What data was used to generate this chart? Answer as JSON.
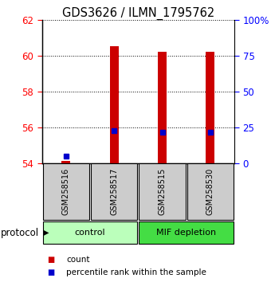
{
  "title": "GDS3626 / ILMN_1795762",
  "samples": [
    "GSM258516",
    "GSM258517",
    "GSM258515",
    "GSM258530"
  ],
  "bar_bottoms": [
    54.0,
    54.0,
    54.0,
    54.0
  ],
  "bar_tops": [
    54.15,
    60.55,
    60.2,
    60.2
  ],
  "percentile_values": [
    54.42,
    55.82,
    55.75,
    55.75
  ],
  "ylim_left": [
    54,
    62
  ],
  "ylim_right": [
    0,
    100
  ],
  "yticks_left": [
    54,
    56,
    58,
    60,
    62
  ],
  "yticks_right": [
    0,
    25,
    50,
    75,
    100
  ],
  "ytick_labels_right": [
    "0",
    "25",
    "50",
    "75",
    "100%"
  ],
  "groups": [
    {
      "label": "control",
      "span": [
        0,
        2
      ],
      "color": "#bbffbb"
    },
    {
      "label": "MIF depletion",
      "span": [
        2,
        4
      ],
      "color": "#44dd44"
    }
  ],
  "bar_color": "#cc0000",
  "percentile_color": "#0000cc",
  "bar_width": 0.18,
  "sample_box_color": "#cccccc",
  "protocol_label": "protocol",
  "legend_items": [
    {
      "color": "#cc0000",
      "label": "count"
    },
    {
      "color": "#0000cc",
      "label": "percentile rank within the sample"
    }
  ]
}
